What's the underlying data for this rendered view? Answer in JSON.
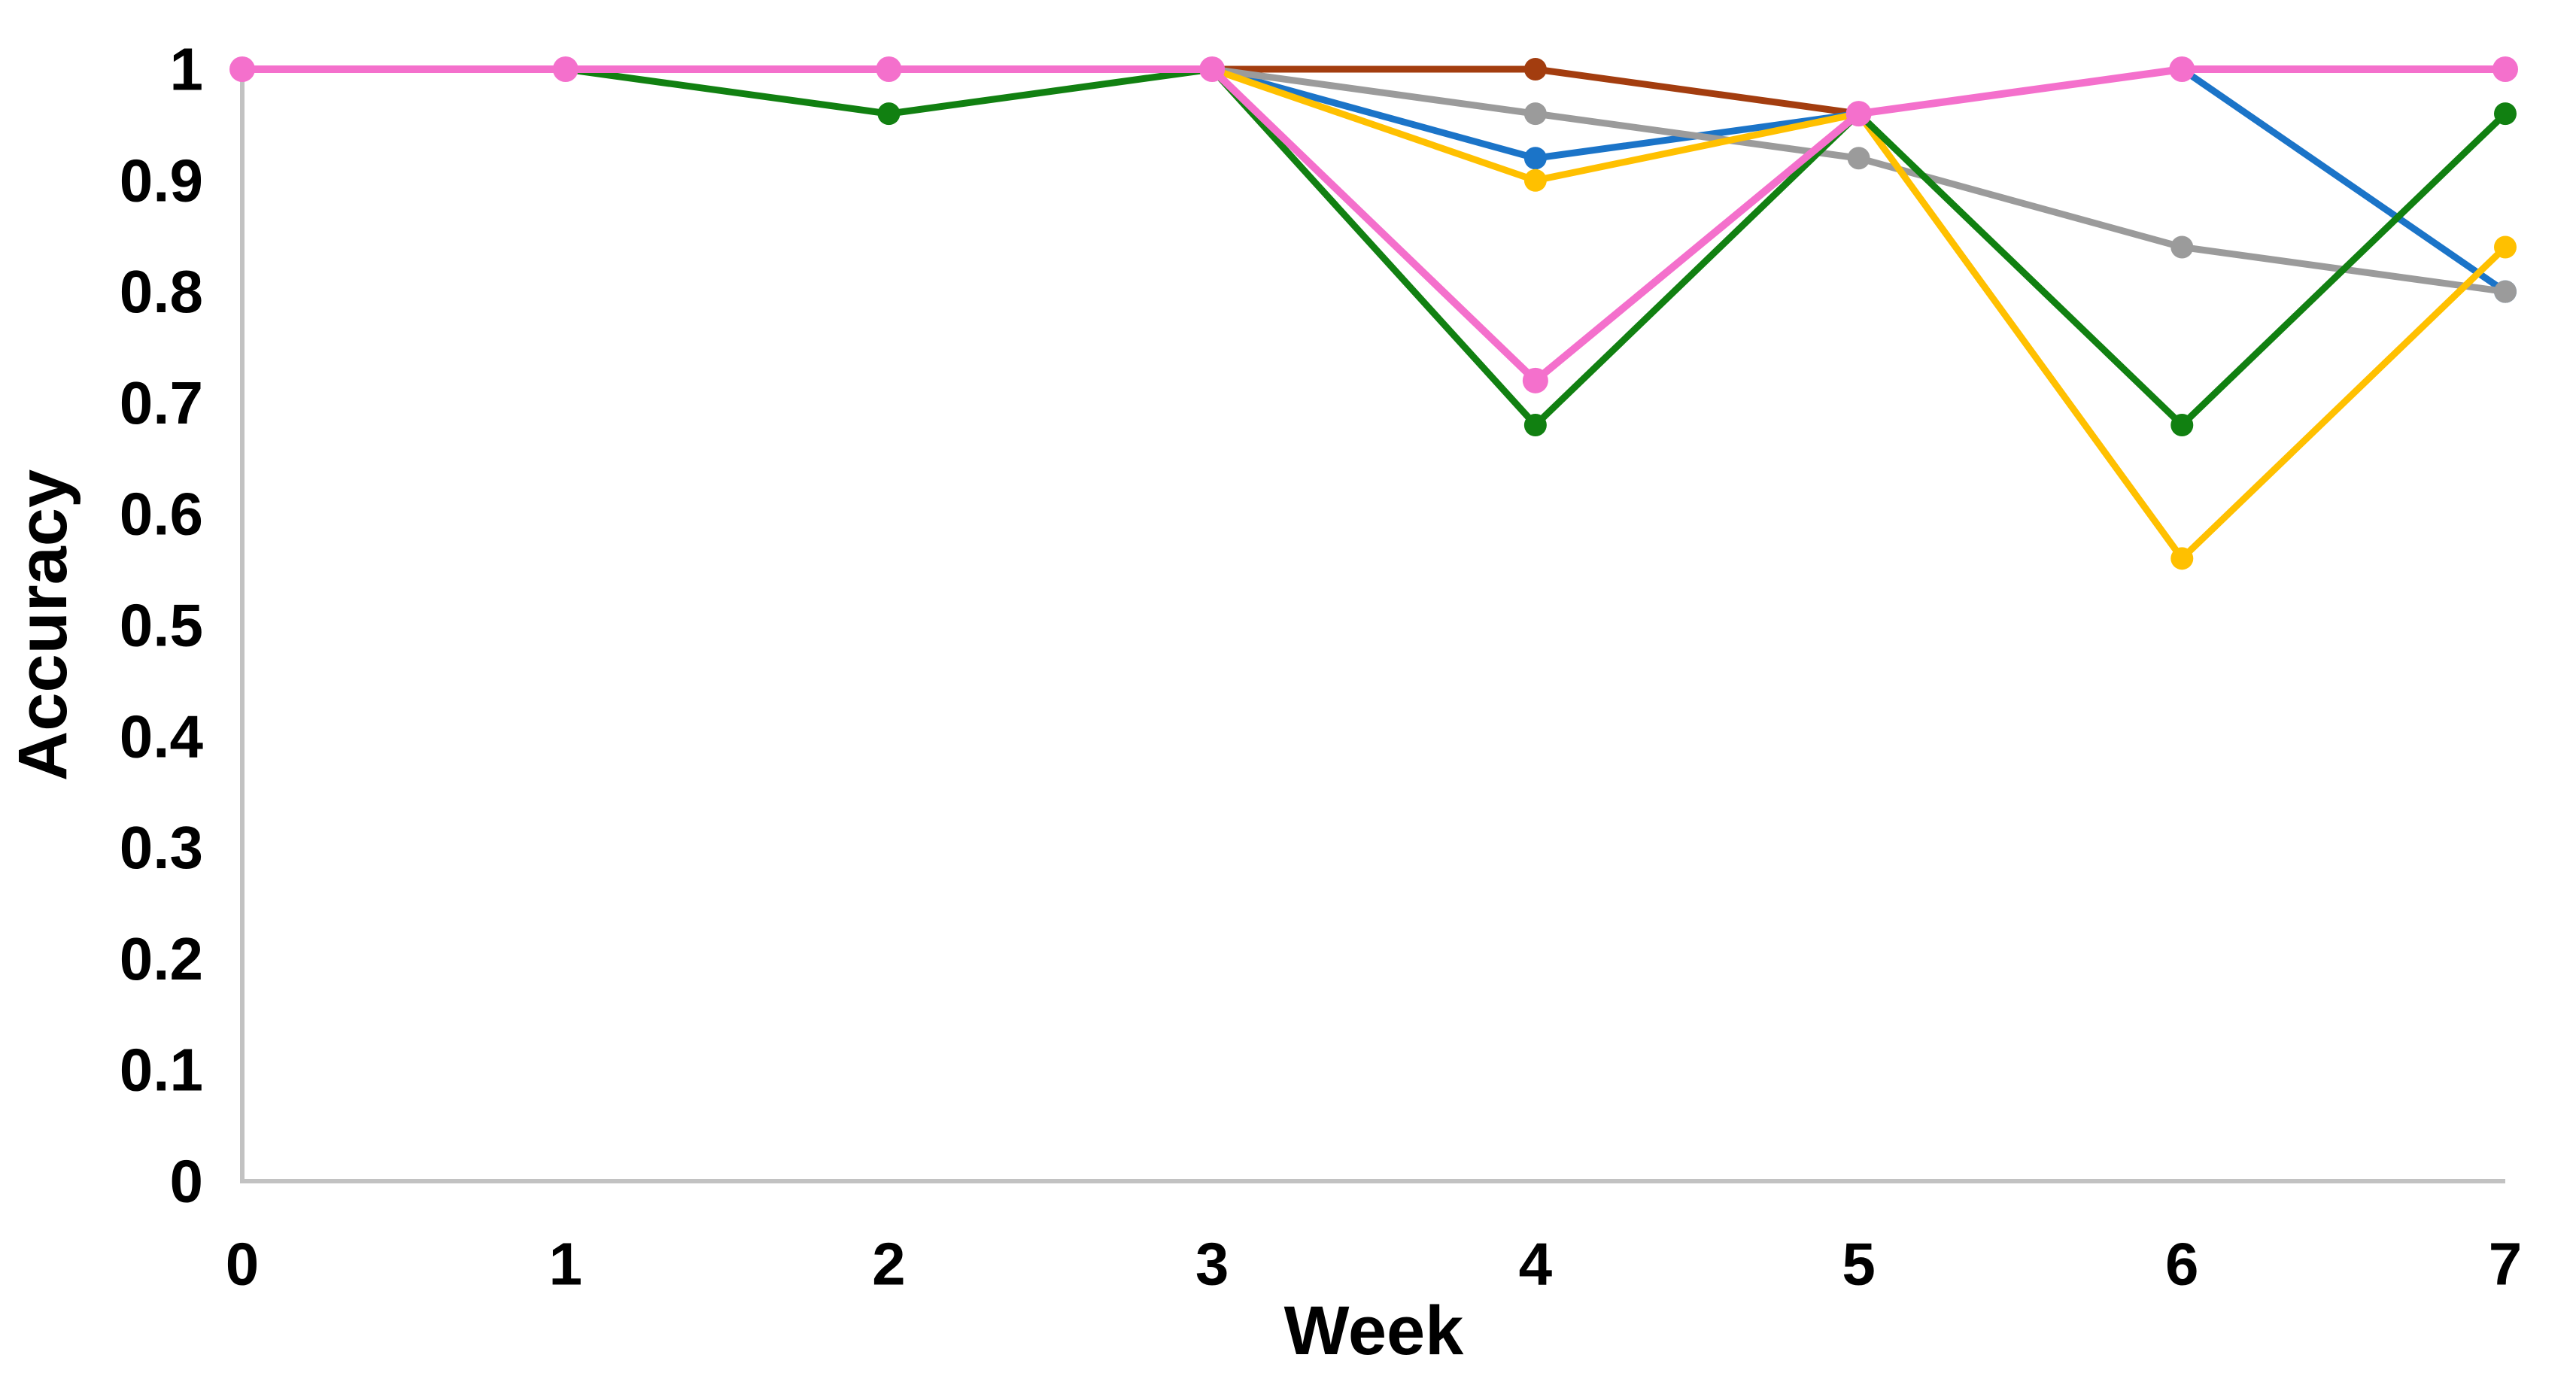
{
  "chart_data": {
    "type": "line",
    "title": "",
    "xlabel": "Week",
    "ylabel": "Accuracy",
    "x": [
      0,
      1,
      2,
      3,
      4,
      5,
      6,
      7
    ],
    "xlim": [
      0,
      7
    ],
    "ylim": [
      0,
      1
    ],
    "grid": false,
    "legend": "none",
    "xticks": {
      "values": [
        0,
        1,
        2,
        3,
        4,
        5,
        6,
        7
      ],
      "labels": [
        "0",
        "1",
        "2",
        "3",
        "4",
        "5",
        "6",
        "7"
      ]
    },
    "yticks": {
      "values": [
        0,
        0.1,
        0.2,
        0.3,
        0.4,
        0.5,
        0.6,
        0.7,
        0.8,
        0.9,
        1
      ],
      "labels": [
        "0",
        "0.1",
        "0.2",
        "0.3",
        "0.4",
        "0.5",
        "0.6",
        "0.7",
        "0.8",
        "0.9",
        "1"
      ]
    },
    "series": [
      {
        "name": "brown-series",
        "color": "#A33D0F",
        "marker": "circle",
        "values": [
          null,
          null,
          null,
          1,
          1,
          0.96,
          null,
          null
        ]
      },
      {
        "name": "blue-series",
        "color": "#1B74C8",
        "marker": "circle",
        "values": [
          null,
          null,
          null,
          1,
          0.92,
          0.96,
          1,
          0.8
        ]
      },
      {
        "name": "gray-series",
        "color": "#9B9B9B",
        "marker": "circle",
        "values": [
          null,
          null,
          null,
          1,
          0.96,
          0.92,
          0.84,
          0.8
        ]
      },
      {
        "name": "yellow-series",
        "color": "#FFC000",
        "marker": "circle",
        "values": [
          null,
          null,
          null,
          1,
          0.9,
          0.96,
          0.56,
          0.84
        ]
      },
      {
        "name": "green-series",
        "color": "#118011",
        "marker": "circle",
        "values": [
          1,
          1,
          0.96,
          1,
          0.68,
          0.96,
          0.68,
          0.96
        ]
      },
      {
        "name": "pink-series",
        "color": "#F470CC",
        "marker": "circle",
        "values": [
          1,
          1,
          1,
          1,
          0.72,
          0.96,
          1,
          1
        ]
      }
    ],
    "axis_line_color": "#C2C2C2",
    "text_color": "#000000",
    "background_color": "#FFFFFF"
  }
}
